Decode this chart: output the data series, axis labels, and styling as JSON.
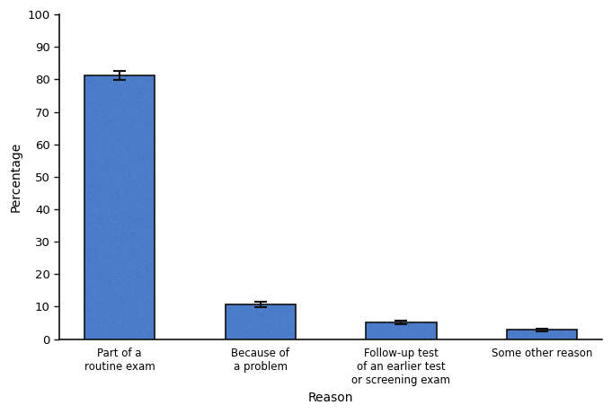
{
  "categories": [
    "Part of a\nroutine exam",
    "Because of\na problem",
    "Follow-up test\nof an earlier test\nor screening exam",
    "Some other reason"
  ],
  "values": [
    81.2,
    10.6,
    5.2,
    2.8
  ],
  "errors": [
    1.3,
    0.8,
    0.5,
    0.4
  ],
  "bar_color": "#4a7cc9",
  "bar_edgecolor": "#111111",
  "error_color": "#111111",
  "ylabel": "Percentage",
  "xlabel": "Reason",
  "ylim": [
    0,
    100
  ],
  "yticks": [
    0,
    10,
    20,
    30,
    40,
    50,
    60,
    70,
    80,
    90,
    100
  ],
  "bar_width": 0.5,
  "background_color": "#ffffff",
  "ylabel_fontsize": 10,
  "xlabel_fontsize": 10,
  "tick_fontsize": 9.5,
  "xtick_fontsize": 8.5,
  "noise_color1": "#3a6ab8",
  "noise_color2": "#6a9ee0"
}
